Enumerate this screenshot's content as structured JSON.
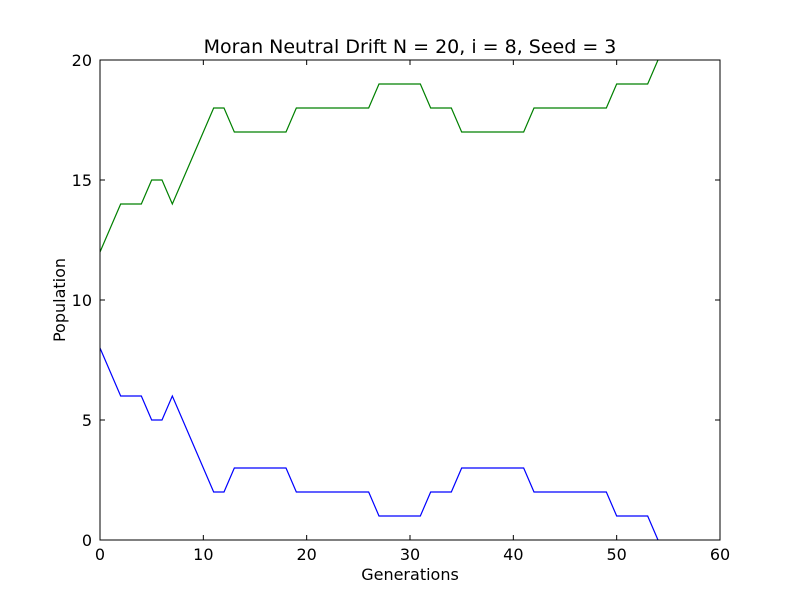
{
  "chart_data": {
    "type": "line",
    "title": "Moran Neutral Drift N = 20, i = 8, Seed = 3",
    "xlabel": "Generations",
    "ylabel": "Population",
    "xlim": [
      0,
      60
    ],
    "ylim": [
      0,
      20
    ],
    "xticks": [
      "0",
      "10",
      "20",
      "30",
      "40",
      "50",
      "60"
    ],
    "yticks": [
      "0",
      "5",
      "10",
      "15",
      "20"
    ],
    "grid": false,
    "series": [
      {
        "color": "#0000ff",
        "x": [
          0,
          1,
          2,
          3,
          4,
          5,
          6,
          7,
          8,
          9,
          10,
          11,
          12,
          13,
          14,
          15,
          16,
          17,
          18,
          19,
          20,
          21,
          22,
          23,
          24,
          25,
          26,
          27,
          28,
          29,
          30,
          31,
          32,
          33,
          34,
          35,
          36,
          37,
          38,
          39,
          40,
          41,
          42,
          43,
          44,
          45,
          46,
          47,
          48,
          49,
          50,
          51,
          52,
          53,
          54
        ],
        "values": [
          8,
          7,
          6,
          6,
          6,
          5,
          5,
          6,
          5,
          4,
          3,
          2,
          2,
          3,
          3,
          3,
          3,
          3,
          3,
          2,
          2,
          2,
          2,
          2,
          2,
          2,
          2,
          1,
          1,
          1,
          1,
          1,
          2,
          2,
          2,
          3,
          3,
          3,
          3,
          3,
          3,
          3,
          2,
          2,
          2,
          2,
          2,
          2,
          2,
          2,
          1,
          1,
          1,
          1,
          0
        ]
      },
      {
        "color": "#008000",
        "x": [
          0,
          1,
          2,
          3,
          4,
          5,
          6,
          7,
          8,
          9,
          10,
          11,
          12,
          13,
          14,
          15,
          16,
          17,
          18,
          19,
          20,
          21,
          22,
          23,
          24,
          25,
          26,
          27,
          28,
          29,
          30,
          31,
          32,
          33,
          34,
          35,
          36,
          37,
          38,
          39,
          40,
          41,
          42,
          43,
          44,
          45,
          46,
          47,
          48,
          49,
          50,
          51,
          52,
          53,
          54
        ],
        "values": [
          12,
          13,
          14,
          14,
          14,
          15,
          15,
          14,
          15,
          16,
          17,
          18,
          18,
          17,
          17,
          17,
          17,
          17,
          17,
          18,
          18,
          18,
          18,
          18,
          18,
          18,
          18,
          19,
          19,
          19,
          19,
          19,
          18,
          18,
          18,
          17,
          17,
          17,
          17,
          17,
          17,
          17,
          18,
          18,
          18,
          18,
          18,
          18,
          18,
          18,
          19,
          19,
          19,
          19,
          20
        ]
      }
    ]
  }
}
